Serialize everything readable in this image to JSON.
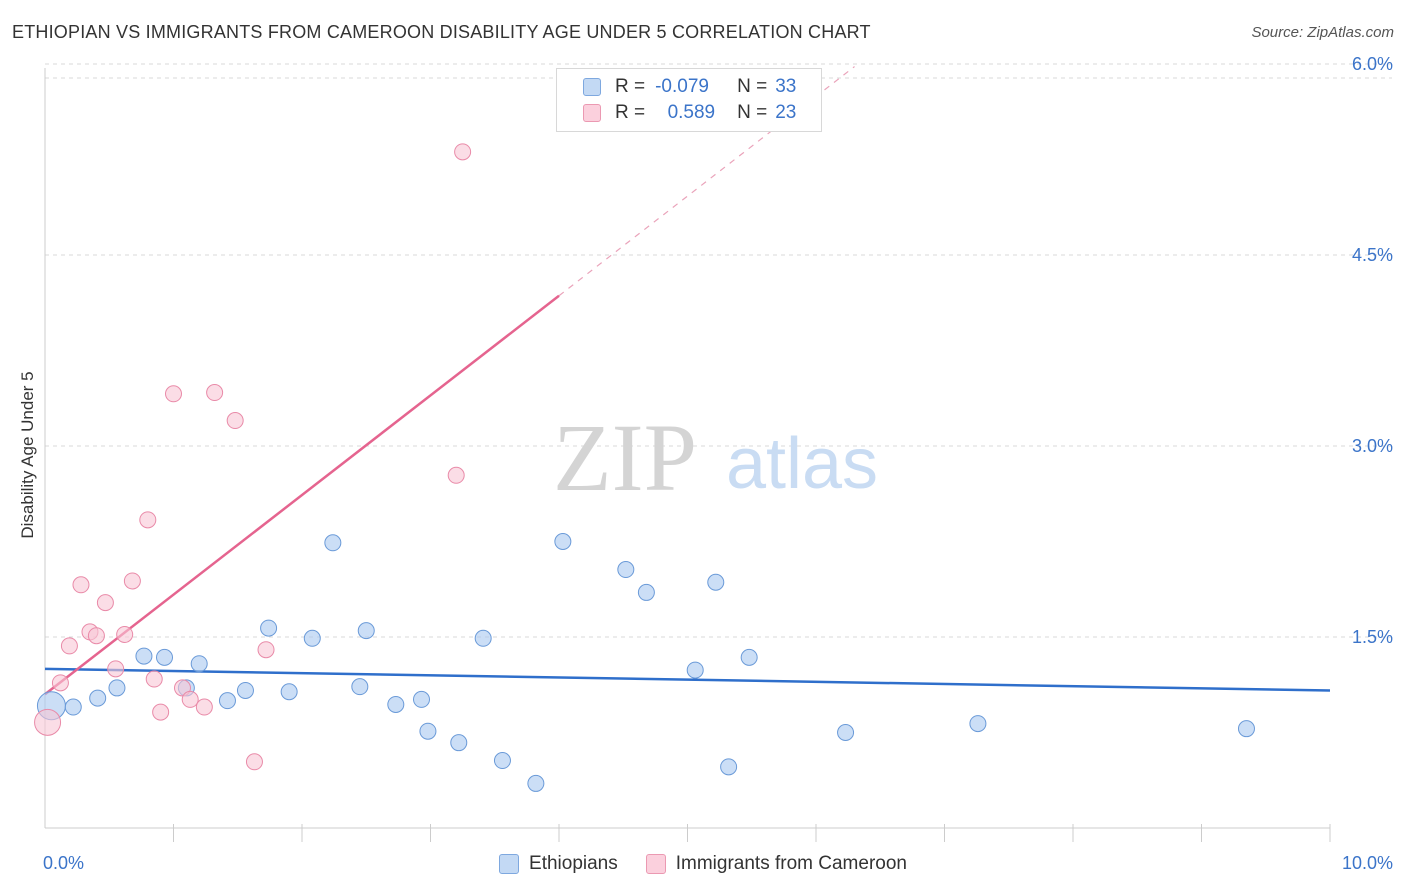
{
  "title": "ETHIOPIAN VS IMMIGRANTS FROM CAMEROON DISABILITY AGE UNDER 5 CORRELATION CHART",
  "source": "Source: ZipAtlas.com",
  "watermark": {
    "zip": "ZIP",
    "atlas": "atlas"
  },
  "legend": {
    "rows": [
      {
        "r_label": "R =",
        "r_value": "-0.079",
        "n_label": "N =",
        "n_value": "33",
        "color": "#a9c8f0"
      },
      {
        "r_label": "R =",
        "r_value": "0.589",
        "n_label": "N =",
        "n_value": "23",
        "color": "#f5b8cb"
      }
    ]
  },
  "bottom_legend": {
    "ethiopians": "Ethiopians",
    "cameroon": "Immigrants from Cameroon"
  },
  "colors": {
    "ethiopians_fill": "#a9c8f0",
    "ethiopians_stroke": "#6a9ad8",
    "ethiopians_line": "#2f6fcb",
    "cameroon_fill": "#f8c6d5",
    "cameroon_stroke": "#e98aa8",
    "cameroon_line": "#e5648f",
    "tick_text": "#3b74c9",
    "grid": "#d9d9d9"
  },
  "chart_data": {
    "type": "scatter",
    "title": "ETHIOPIAN VS IMMIGRANTS FROM CAMEROON DISABILITY AGE UNDER 5 CORRELATION CHART",
    "xlabel": "",
    "ylabel": "Disability Age Under 5",
    "xlim": [
      0,
      10
    ],
    "ylim": [
      0,
      6.2
    ],
    "x_tick_labels": [
      "0.0%",
      "10.0%"
    ],
    "y_ticks": [
      1.5,
      3.0,
      4.5,
      6.0
    ],
    "y_tick_labels": [
      "1.5%",
      "3.0%",
      "4.5%",
      "6.0%"
    ],
    "grid": true,
    "series": [
      {
        "name": "Ethiopians",
        "points": [
          [
            0.05,
            0.96
          ],
          [
            0.22,
            0.95
          ],
          [
            0.41,
            1.02
          ],
          [
            0.56,
            1.1
          ],
          [
            0.77,
            1.35
          ],
          [
            0.93,
            1.34
          ],
          [
            1.1,
            1.1
          ],
          [
            1.2,
            1.29
          ],
          [
            1.42,
            1.0
          ],
          [
            1.56,
            1.08
          ],
          [
            1.74,
            1.57
          ],
          [
            1.9,
            1.07
          ],
          [
            2.08,
            1.49
          ],
          [
            2.24,
            2.24
          ],
          [
            2.45,
            1.11
          ],
          [
            2.5,
            1.55
          ],
          [
            2.73,
            0.97
          ],
          [
            2.93,
            1.01
          ],
          [
            2.98,
            0.76
          ],
          [
            3.22,
            0.67
          ],
          [
            3.41,
            1.49
          ],
          [
            3.56,
            0.53
          ],
          [
            3.82,
            0.35
          ],
          [
            4.03,
            2.25
          ],
          [
            4.52,
            2.03
          ],
          [
            4.68,
            1.85
          ],
          [
            5.06,
            1.24
          ],
          [
            5.22,
            1.93
          ],
          [
            5.32,
            0.48
          ],
          [
            5.48,
            1.34
          ],
          [
            6.23,
            0.75
          ],
          [
            7.26,
            0.82
          ],
          [
            9.35,
            0.78
          ]
        ],
        "trend": {
          "x": [
            0.0,
            10.0
          ],
          "y": [
            1.25,
            1.08
          ]
        }
      },
      {
        "name": "Immigrants from Cameroon",
        "points": [
          [
            0.02,
            0.83
          ],
          [
            0.12,
            1.14
          ],
          [
            0.19,
            1.43
          ],
          [
            0.28,
            1.91
          ],
          [
            0.35,
            1.54
          ],
          [
            0.4,
            1.51
          ],
          [
            0.47,
            1.77
          ],
          [
            0.55,
            1.25
          ],
          [
            0.62,
            1.52
          ],
          [
            0.68,
            1.94
          ],
          [
            0.8,
            2.42
          ],
          [
            0.85,
            1.17
          ],
          [
            0.9,
            0.91
          ],
          [
            1.0,
            3.41
          ],
          [
            1.07,
            1.1
          ],
          [
            1.13,
            1.01
          ],
          [
            1.24,
            0.95
          ],
          [
            1.32,
            3.42
          ],
          [
            1.48,
            3.2
          ],
          [
            1.63,
            0.52
          ],
          [
            1.72,
            1.4
          ],
          [
            3.2,
            2.77
          ],
          [
            3.25,
            5.31
          ]
        ],
        "trend": {
          "x": [
            0.0,
            4.0
          ],
          "y": [
            1.05,
            4.18
          ],
          "dashed_extension": {
            "x": [
              4.0,
              6.3
            ],
            "y": [
              4.18,
              5.98
            ]
          }
        }
      }
    ]
  }
}
